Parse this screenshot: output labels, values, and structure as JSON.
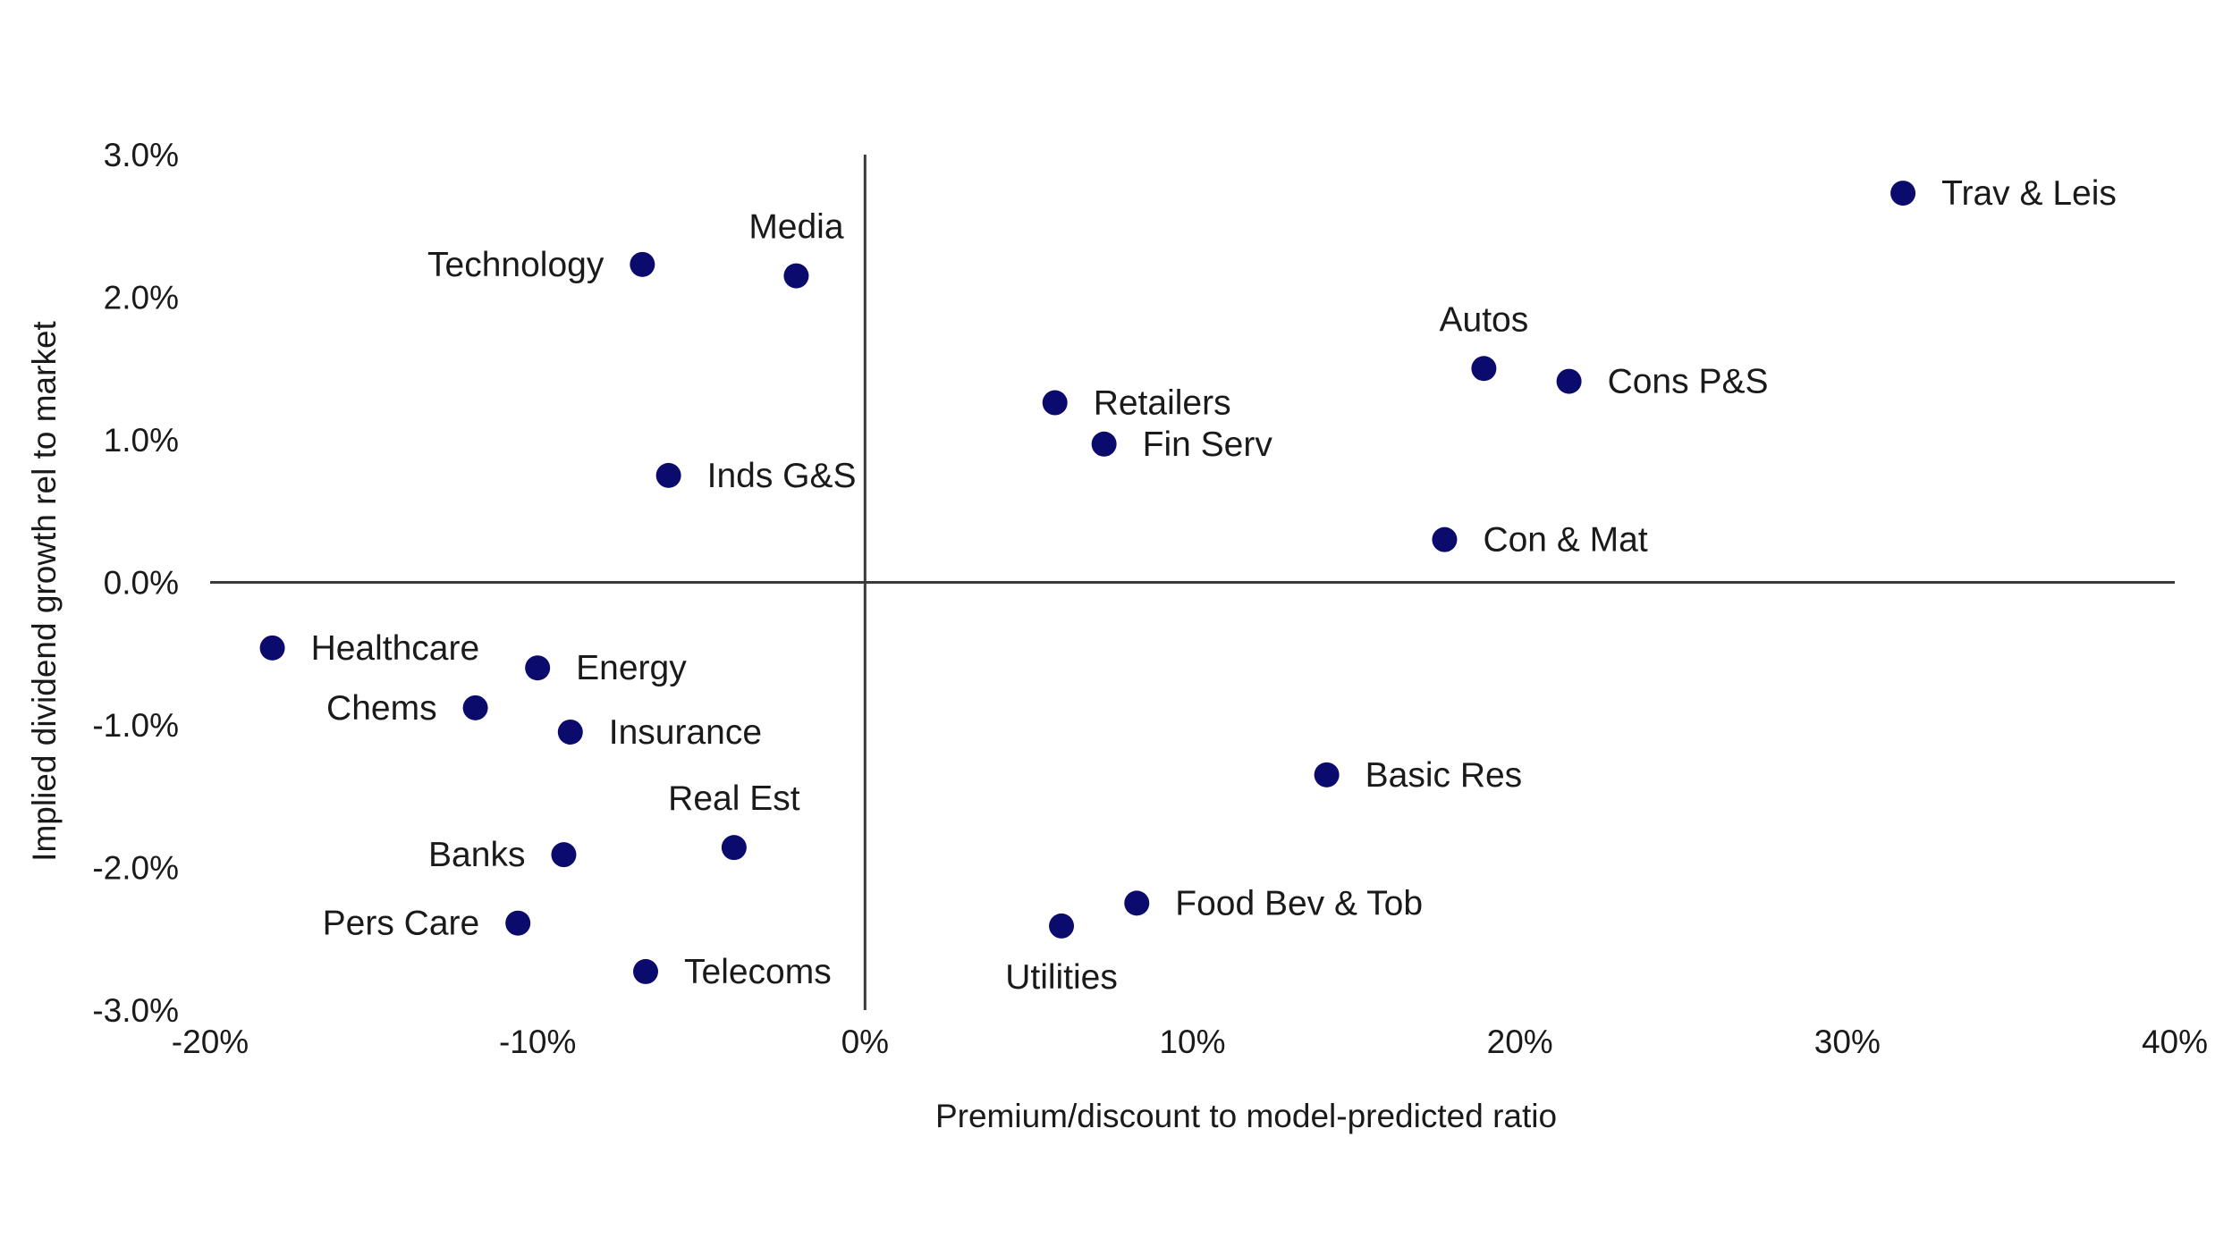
{
  "chart_data": {
    "type": "scatter",
    "title": "",
    "xlabel": "Premium/discount to model-predicted ratio",
    "ylabel": "Implied dividend growth rel to market",
    "xlim": [
      -20,
      40
    ],
    "ylim": [
      -3.0,
      3.0
    ],
    "x_ticks": [
      -20,
      -10,
      0,
      10,
      20,
      30,
      40
    ],
    "x_tick_labels": [
      "-20%",
      "-10%",
      "0%",
      "10%",
      "20%",
      "30%",
      "40%"
    ],
    "y_ticks": [
      3.0,
      2.0,
      1.0,
      0.0,
      -1.0,
      -2.0,
      -3.0
    ],
    "y_tick_labels": [
      "3.0%",
      "2.0%",
      "1.0%",
      "0.0%",
      "-1.0%",
      "-2.0%",
      "-3.0%"
    ],
    "marker_color": "#0b0b6e",
    "axis_color": "#3a3a3a",
    "grid": false,
    "points": [
      {
        "name": "Trav & Leis",
        "x": 31.7,
        "y": 2.73,
        "label_pos": "right"
      },
      {
        "name": "Media",
        "x": -2.1,
        "y": 2.15,
        "label_pos": "above"
      },
      {
        "name": "Technology",
        "x": -6.8,
        "y": 2.23,
        "label_pos": "left"
      },
      {
        "name": "Autos",
        "x": 18.9,
        "y": 1.5,
        "label_pos": "above"
      },
      {
        "name": "Cons P&S",
        "x": 21.5,
        "y": 1.41,
        "label_pos": "right"
      },
      {
        "name": "Retailers",
        "x": 5.8,
        "y": 1.26,
        "label_pos": "right"
      },
      {
        "name": "Fin Serv",
        "x": 7.3,
        "y": 0.97,
        "label_pos": "right"
      },
      {
        "name": "Inds G&S",
        "x": -6.0,
        "y": 0.75,
        "label_pos": "right"
      },
      {
        "name": "Con & Mat",
        "x": 17.7,
        "y": 0.3,
        "label_pos": "right"
      },
      {
        "name": "Healthcare",
        "x": -18.1,
        "y": -0.46,
        "label_pos": "right"
      },
      {
        "name": "Energy",
        "x": -10.0,
        "y": -0.6,
        "label_pos": "right"
      },
      {
        "name": "Chems",
        "x": -11.9,
        "y": -0.88,
        "label_pos": "left"
      },
      {
        "name": "Insurance",
        "x": -9.0,
        "y": -1.05,
        "label_pos": "right"
      },
      {
        "name": "Basic Res",
        "x": 14.1,
        "y": -1.35,
        "label_pos": "right"
      },
      {
        "name": "Real Est",
        "x": -4.0,
        "y": -1.86,
        "label_pos": "above"
      },
      {
        "name": "Banks",
        "x": -9.2,
        "y": -1.91,
        "label_pos": "left"
      },
      {
        "name": "Food Bev & Tob",
        "x": 8.3,
        "y": -2.25,
        "label_pos": "right"
      },
      {
        "name": "Pers Care",
        "x": -10.6,
        "y": -2.39,
        "label_pos": "left"
      },
      {
        "name": "Utilities",
        "x": 6.0,
        "y": -2.41,
        "label_pos": "below"
      },
      {
        "name": "Telecoms",
        "x": -6.7,
        "y": -2.73,
        "label_pos": "right"
      }
    ]
  }
}
